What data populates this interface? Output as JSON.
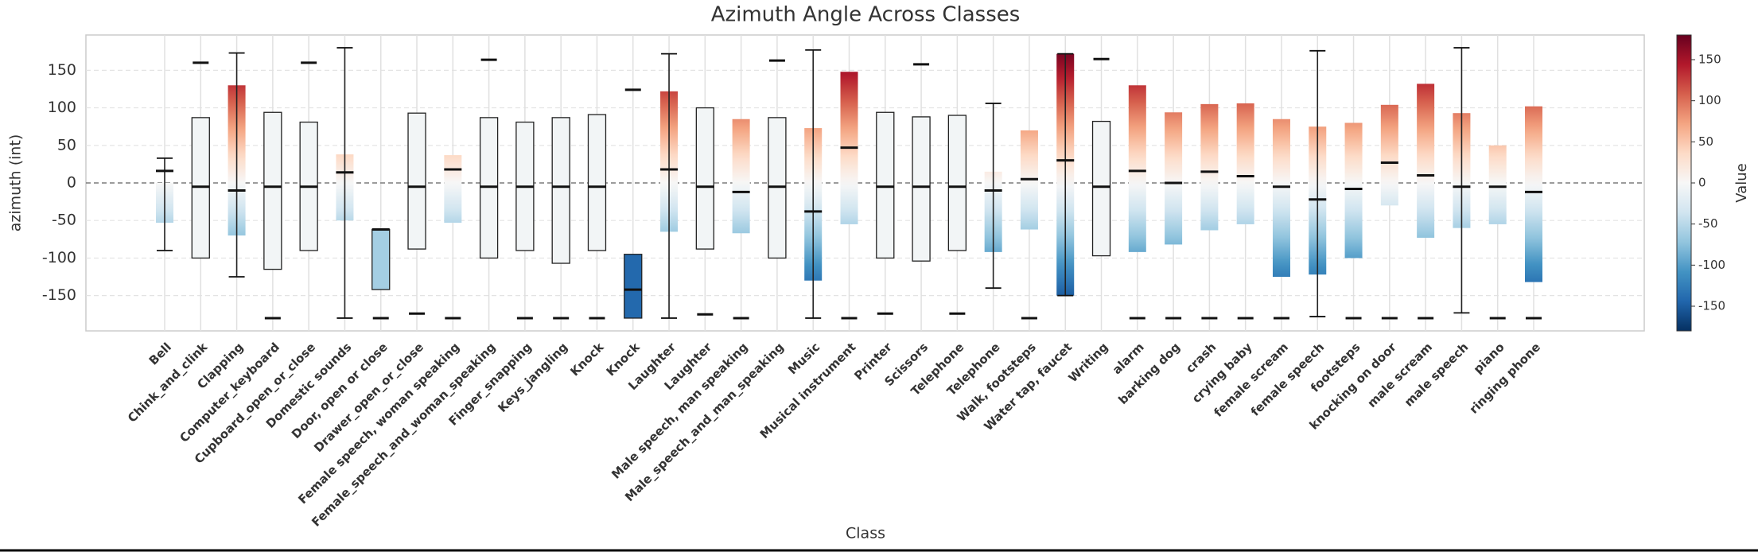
{
  "chart_data": {
    "type": "range_bar",
    "title": "Azimuth Angle Across Classes",
    "xlabel": "Class",
    "ylabel": "azimuth (int)",
    "categories": [
      "Bell",
      "Chink_and_clink",
      "Clapping",
      "Computer_keyboard",
      "Cupboard_open_or_close",
      "Domestic sounds",
      "Door, open or close",
      "Drawer_open_or_close",
      "Female speech, woman speaking",
      "Female_speech_and_woman_speaking",
      "Finger_snapping",
      "Keys_jangling",
      "Knock",
      "Knock",
      "Laughter",
      "Laughter",
      "Male speech, man speaking",
      "Male_speech_and_man_speaking",
      "Music",
      "Musical instrument",
      "Printer",
      "Scissors",
      "Telephone",
      "Telephone",
      "Walk, footsteps",
      "Water tap, faucet",
      "Writing",
      "alarm",
      "barking dog",
      "crash",
      "crying baby",
      "female scream",
      "female speech",
      "footsteps",
      "knocking on door",
      "male scream",
      "male speech",
      "piano",
      "ringing phone"
    ],
    "low": [
      -53,
      -100,
      -70,
      -115,
      -90,
      -50,
      -142,
      -88,
      -53,
      -100,
      -90,
      -107,
      -90,
      -180,
      -65,
      -88,
      -67,
      -100,
      -130,
      -55,
      -100,
      -104,
      -90,
      -92,
      -62,
      -150,
      -97,
      -92,
      -82,
      -63,
      -55,
      -125,
      -122,
      -100,
      -30,
      -73,
      -60,
      -55,
      -132
    ],
    "high": [
      0,
      87,
      130,
      94,
      81,
      38,
      -62,
      93,
      37,
      87,
      81,
      87,
      91,
      -95,
      122,
      100,
      85,
      87,
      73,
      148,
      94,
      88,
      90,
      15,
      70,
      172,
      82,
      130,
      94,
      105,
      106,
      85,
      75,
      80,
      104,
      132,
      93,
      50,
      102
    ],
    "mean": [
      16,
      -5,
      -10,
      -5,
      -5,
      14,
      -62,
      -5,
      18,
      -5,
      -5,
      -5,
      -5,
      -142,
      18,
      -5,
      -12,
      -5,
      -38,
      47,
      -5,
      -5,
      -5,
      -10,
      5,
      30,
      -5,
      16,
      0,
      15,
      9,
      -5,
      -22,
      -8,
      27,
      10,
      -5,
      -5,
      -12
    ],
    "min": [
      -90,
      null,
      -125,
      -180,
      null,
      -180,
      -180,
      -174,
      -180,
      null,
      -180,
      -180,
      -180,
      null,
      -180,
      -175,
      -180,
      null,
      -180,
      -180,
      -174,
      null,
      -174,
      -140,
      -180,
      -150,
      null,
      -180,
      -180,
      -180,
      -180,
      -180,
      -178,
      -180,
      -180,
      -180,
      -173,
      -180,
      -180
    ],
    "max": [
      33,
      160,
      173,
      null,
      160,
      180,
      null,
      null,
      null,
      164,
      null,
      null,
      null,
      124,
      172,
      null,
      null,
      163,
      177,
      null,
      null,
      158,
      null,
      106,
      null,
      172,
      165,
      null,
      null,
      null,
      null,
      null,
      176,
      null,
      null,
      null,
      180,
      null,
      null
    ],
    "outlined": [
      false,
      true,
      false,
      true,
      true,
      false,
      true,
      true,
      false,
      true,
      true,
      true,
      true,
      true,
      false,
      true,
      false,
      true,
      false,
      false,
      true,
      true,
      true,
      false,
      false,
      false,
      true,
      false,
      false,
      false,
      false,
      false,
      false,
      false,
      false,
      false,
      false,
      false,
      false
    ],
    "whisker": [
      true,
      false,
      true,
      false,
      false,
      true,
      false,
      false,
      false,
      false,
      false,
      false,
      false,
      false,
      true,
      false,
      false,
      false,
      true,
      false,
      false,
      false,
      false,
      true,
      false,
      true,
      false,
      false,
      false,
      false,
      false,
      false,
      true,
      false,
      false,
      false,
      true,
      false,
      false
    ],
    "ylim": [
      -197,
      197
    ],
    "yticks": [
      -150,
      -100,
      -50,
      0,
      50,
      100,
      150
    ],
    "grid": true,
    "colorbar": {
      "label": "Value",
      "colormap": "RdBu_r",
      "lim": [
        -180,
        180
      ],
      "ticks": [
        -150,
        -100,
        -50,
        0,
        50,
        100,
        150
      ]
    }
  }
}
